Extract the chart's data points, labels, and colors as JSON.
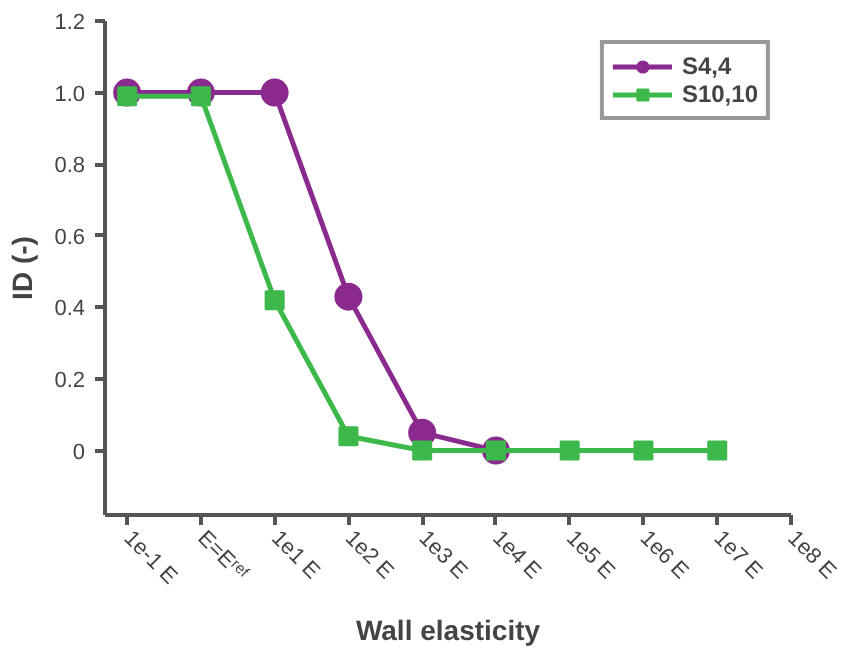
{
  "chart_data": {
    "type": "line",
    "xlabel": "Wall elasticity",
    "ylabel": "ID (-)",
    "categories": [
      "1e-1 E",
      "E=Eʳᵉᶠ",
      "1e1 E",
      "1e2 E",
      "1e3 E",
      "1e4 E",
      "1e5 E",
      "1e6 E",
      "1e7 E",
      "1e8 E"
    ],
    "series": [
      {
        "name": "S4,4",
        "color": "#8b2a8e",
        "marker": "circle",
        "values": [
          1.0,
          1.0,
          1.0,
          0.43,
          0.05,
          0.0,
          null,
          null,
          null,
          null
        ]
      },
      {
        "name": "S10,10",
        "color": "#3cb94a",
        "marker": "square",
        "values": [
          0.99,
          0.99,
          0.42,
          0.04,
          0.0,
          0.0,
          0.0,
          0.0,
          0.0,
          null
        ]
      }
    ],
    "ylim": [
      -0.18,
      1.2
    ],
    "yticks": [
      0,
      {
        "value": 0.2,
        "label": "0.2"
      },
      {
        "value": 0.4,
        "label": "0.4"
      },
      {
        "value": 0.6,
        "label": "0.6"
      },
      {
        "value": 0.8,
        "label": "0.8"
      },
      {
        "value": 1.0,
        "label": "1.0"
      },
      {
        "value": 1.2,
        "label": "1.2"
      }
    ],
    "grid": false,
    "legend": "top right",
    "line_style": "solid"
  }
}
